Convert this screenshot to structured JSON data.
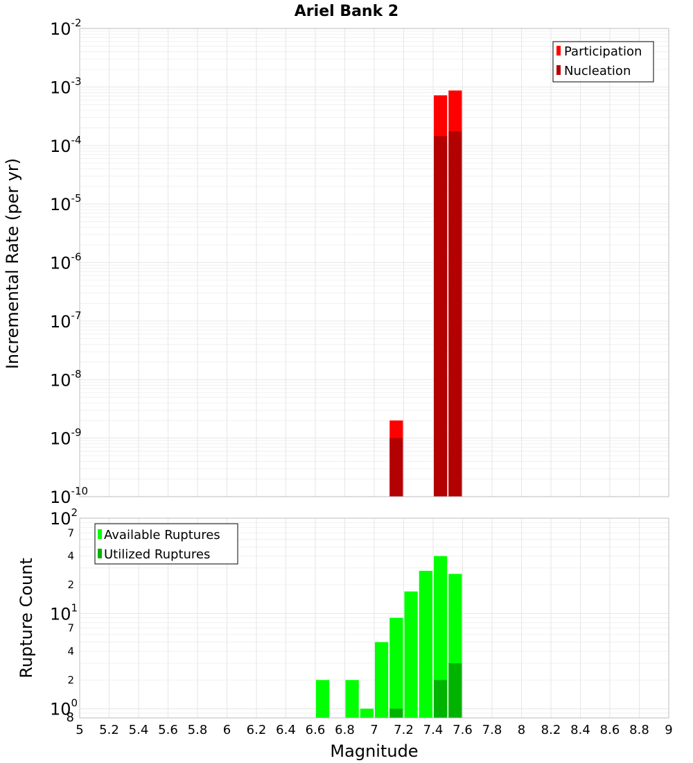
{
  "chart_data": [
    {
      "type": "bar",
      "title": "Ariel Bank 2",
      "xlabel": "",
      "ylabel": "Incremental Rate (per yr)",
      "yscale": "log",
      "ylim": [
        1e-10,
        0.01
      ],
      "xlim": [
        5,
        9
      ],
      "bar_width": 0.1,
      "legend_position": "top-right",
      "y_ticks": [
        {
          "base": "10",
          "exp": "-2"
        },
        {
          "base": "10",
          "exp": "-3"
        },
        {
          "base": "10",
          "exp": "-4"
        },
        {
          "base": "10",
          "exp": "-5"
        },
        {
          "base": "10",
          "exp": "-6"
        },
        {
          "base": "10",
          "exp": "-7"
        },
        {
          "base": "10",
          "exp": "-8"
        },
        {
          "base": "10",
          "exp": "-9"
        },
        {
          "base": "10",
          "exp": "-10"
        }
      ],
      "series": [
        {
          "name": "Participation",
          "color": "#ff0000",
          "x": [
            7.15,
            7.45,
            7.55
          ],
          "values": [
            2e-09,
            0.00072,
            0.00087
          ]
        },
        {
          "name": "Nucleation",
          "color": "#b30000",
          "x": [
            7.15,
            7.45,
            7.55
          ],
          "values": [
            1e-09,
            0.000145,
            0.000175
          ]
        }
      ]
    },
    {
      "type": "bar",
      "title": "",
      "xlabel": "Magnitude",
      "ylabel": "Rupture Count",
      "yscale": "log",
      "ylim": [
        0.8,
        100
      ],
      "xlim": [
        5,
        9
      ],
      "bar_width": 0.1,
      "legend_position": "top-left",
      "x_ticks": [
        "5",
        "5.2",
        "5.4",
        "5.6",
        "5.8",
        "6",
        "6.2",
        "6.4",
        "6.6",
        "6.8",
        "7",
        "7.2",
        "7.4",
        "7.6",
        "7.8",
        "8",
        "8.2",
        "8.4",
        "8.6",
        "8.8",
        "9"
      ],
      "y_major_ticks": [
        {
          "base": "10",
          "exp": "2"
        },
        {
          "base": "10",
          "exp": "1"
        },
        {
          "base": "10",
          "exp": "0"
        }
      ],
      "y_minor_ticks": [
        "7",
        "4",
        "2",
        "7",
        "4",
        "2",
        "8"
      ],
      "series": [
        {
          "name": "Available Ruptures",
          "color": "#00ff00",
          "x": [
            6.65,
            6.85,
            6.95,
            7.05,
            7.15,
            7.25,
            7.35,
            7.45,
            7.55
          ],
          "values": [
            2,
            2,
            1,
            5,
            9,
            17,
            28,
            40,
            26
          ]
        },
        {
          "name": "Utilized Ruptures",
          "color": "#00b300",
          "x": [
            7.15,
            7.45,
            7.55
          ],
          "values": [
            1,
            2,
            3
          ]
        }
      ]
    }
  ]
}
